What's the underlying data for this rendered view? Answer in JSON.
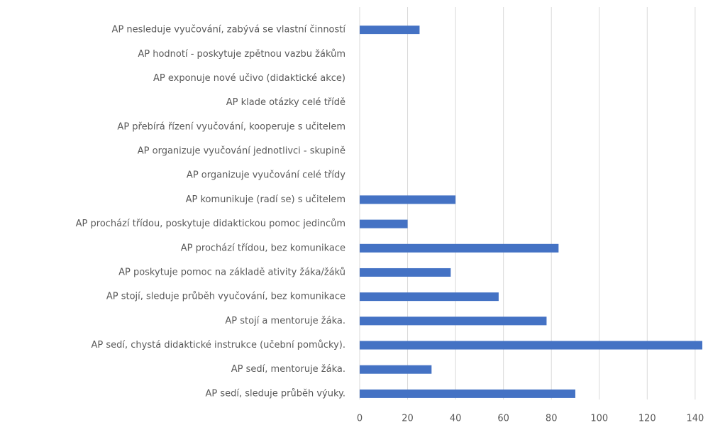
{
  "chart_data": {
    "type": "bar",
    "orientation": "horizontal",
    "categories": [
      "AP nesleduje vyučování, zabývá se vlastní činností",
      "AP hodnotí - poskytuje zpětnou vazbu žákům",
      "AP exponuje nové učivo (didaktické akce)",
      "AP klade otázky celé třídě",
      "AP přebírá řízení vyučování, kooperuje s učitelem",
      "AP organizuje vyučování jednotlivci - skupině",
      "AP organizuje vyučování celé třídy",
      "AP komunikuje (radí se) s učitelem",
      "AP prochází třídou, poskytuje didaktickou pomoc jedincům",
      "AP prochází třídou, bez komunikace",
      "AP poskytuje pomoc na základě ativity žáka/žáků",
      "AP stojí, sleduje průběh vyučování, bez komunikace",
      "AP stojí a mentoruje žáka.",
      "AP sedí, chystá didaktické instrukce (učební pomůcky).",
      "AP sedí, mentoruje žáka.",
      "AP sedí, sleduje průběh výuky."
    ],
    "values": [
      25,
      0,
      0,
      0,
      0,
      0,
      0,
      40,
      20,
      83,
      38,
      58,
      78,
      143,
      30,
      90
    ],
    "color": "#4472c4",
    "xlim": [
      0,
      143
    ],
    "xticks": [
      0,
      20,
      40,
      60,
      80,
      100,
      120,
      140
    ],
    "grid": true
  }
}
